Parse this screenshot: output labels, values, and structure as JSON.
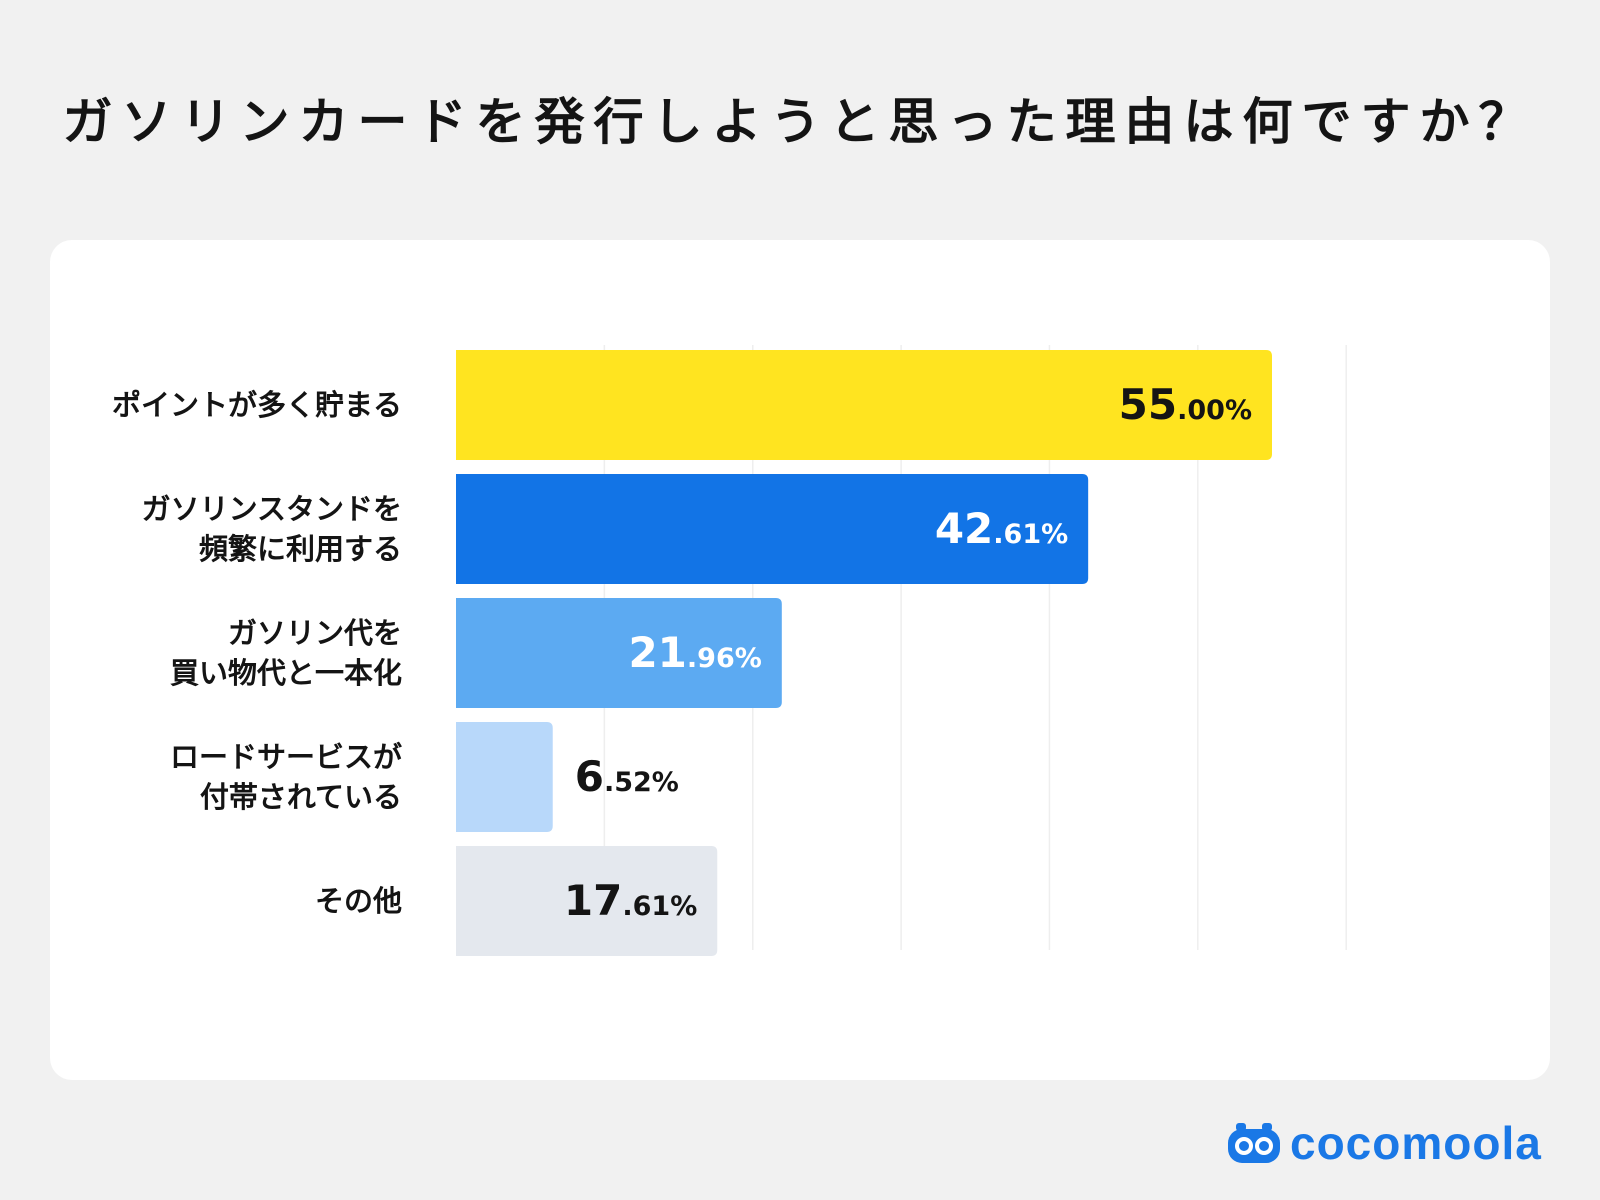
{
  "header": {
    "title": "ガソリンカードを発行しようと思った理由は何ですか？"
  },
  "brand": {
    "name": "cocomoola",
    "color": "#1a78e6",
    "icon": "car-face-icon"
  },
  "chart_data": {
    "type": "bar",
    "orientation": "horizontal",
    "title": "ガソリンカードを発行しようと思った理由は何ですか？",
    "xlabel": "",
    "ylabel": "",
    "unit": "%",
    "xlim": [
      0,
      60
    ],
    "grid": true,
    "categories": [
      [
        "ポイントが多く貯まる"
      ],
      [
        "ガソリンスタンドを",
        "頻繁に利用する"
      ],
      [
        "ガソリン代を",
        "買い物代と一本化"
      ],
      [
        "ロードサービスが",
        "付帯されている"
      ],
      [
        "その他"
      ]
    ],
    "values": [
      55.0,
      42.61,
      21.96,
      6.52,
      17.61
    ],
    "value_labels": [
      {
        "int": "55",
        "dec": ".00%"
      },
      {
        "int": "42",
        "dec": ".61%"
      },
      {
        "int": "21",
        "dec": ".96%"
      },
      {
        "int": "6",
        "dec": ".52%"
      },
      {
        "int": "17",
        "dec": ".61%"
      }
    ],
    "colors": [
      "#ffe420",
      "#1274e6",
      "#5caaf2",
      "#b8d8fa",
      "#e4e8ee"
    ],
    "label_colors": [
      "#141414",
      "#ffffff",
      "#ffffff",
      "#141414",
      "#141414"
    ],
    "label_inside": [
      true,
      true,
      true,
      false,
      true
    ]
  }
}
